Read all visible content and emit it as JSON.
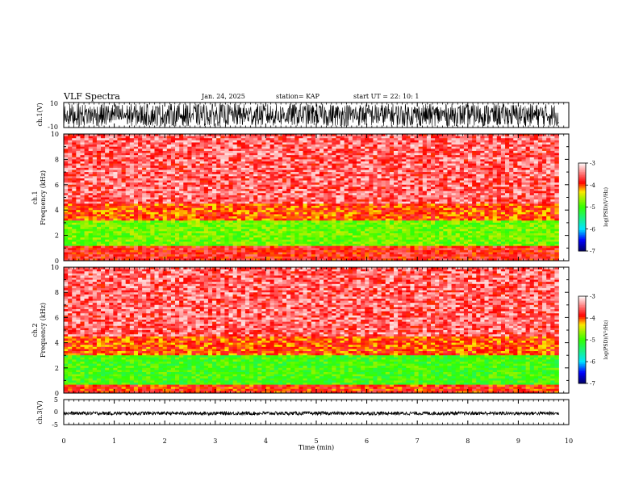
{
  "header": {
    "title": "VLF Spectra",
    "date": "Jan. 24, 2025",
    "station": "station= KAP",
    "start": "start  UT  =   22: 10: 1"
  },
  "chart_data": [
    {
      "type": "line",
      "id": "ch1-waveform",
      "ylabel": "ch.1(V)",
      "ylim": [
        -10,
        10
      ],
      "yticks": [
        "10",
        "-10"
      ],
      "xlim": [
        0,
        10
      ],
      "x_extent_min": 9.8,
      "description_of_series": "dense oscillating waveform spanning most of the range",
      "series": [
        {
          "values_range": [
            -9,
            9
          ]
        }
      ]
    },
    {
      "type": "heatmap",
      "id": "ch1-spectrogram",
      "ylabel": "ch.1\nFrequency (kHz)",
      "ylim": [
        0,
        10
      ],
      "yticks": [
        "0",
        "2",
        "4",
        "6",
        "8",
        "10"
      ],
      "xlim": [
        0,
        10
      ],
      "colorbar": {
        "label": "log(PSD)(V²/Hz)",
        "ticks": [
          "-3",
          "-4",
          "-5",
          "-6",
          "-7"
        ],
        "range": [
          -7,
          -3
        ]
      },
      "bands_khz": [
        {
          "from": 0,
          "to": 1.2,
          "level": -3.8
        },
        {
          "from": 1.2,
          "to": 3.2,
          "level": -4.8
        },
        {
          "from": 3.2,
          "to": 4.5,
          "level": -4.0
        },
        {
          "from": 4.5,
          "to": 10,
          "level": -3.2
        }
      ]
    },
    {
      "type": "heatmap",
      "id": "ch2-spectrogram",
      "ylabel": "ch.2\nFrequency (kHz)",
      "ylim": [
        0,
        10
      ],
      "yticks": [
        "0",
        "2",
        "4",
        "6",
        "8",
        "10"
      ],
      "xlim": [
        0,
        10
      ],
      "colorbar": {
        "label": "log(PSD)(V²/Hz)",
        "ticks": [
          "-3",
          "-4",
          "-5",
          "-6",
          "-7"
        ],
        "range": [
          -7,
          -3
        ]
      },
      "bands_khz": [
        {
          "from": 0,
          "to": 0.7,
          "level": -3.9
        },
        {
          "from": 0.7,
          "to": 3.0,
          "level": -5.0
        },
        {
          "from": 3.0,
          "to": 4.5,
          "level": -4.0
        },
        {
          "from": 4.5,
          "to": 10,
          "level": -3.2
        }
      ]
    },
    {
      "type": "line",
      "id": "ch3-waveform",
      "ylabel": "ch.3(V)",
      "ylim": [
        -5,
        5
      ],
      "yticks": [
        "5",
        "0",
        "-5"
      ],
      "xlim": [
        0,
        10
      ],
      "x_extent_min": 9.8,
      "series": [
        {
          "values_range": [
            -1.2,
            0.2
          ]
        }
      ]
    }
  ],
  "xaxis": {
    "label": "Time (min)",
    "ticks": [
      "0",
      "1",
      "2",
      "3",
      "4",
      "5",
      "6",
      "7",
      "8",
      "9",
      "10"
    ]
  },
  "colors": {
    "frame": "#000000",
    "white": "#ffffff",
    "red": "#ff0000",
    "yellow": "#ffe600",
    "green": "#33ff00",
    "cyan": "#00e5ff",
    "blue": "#0000ff",
    "navy": "#000066"
  }
}
